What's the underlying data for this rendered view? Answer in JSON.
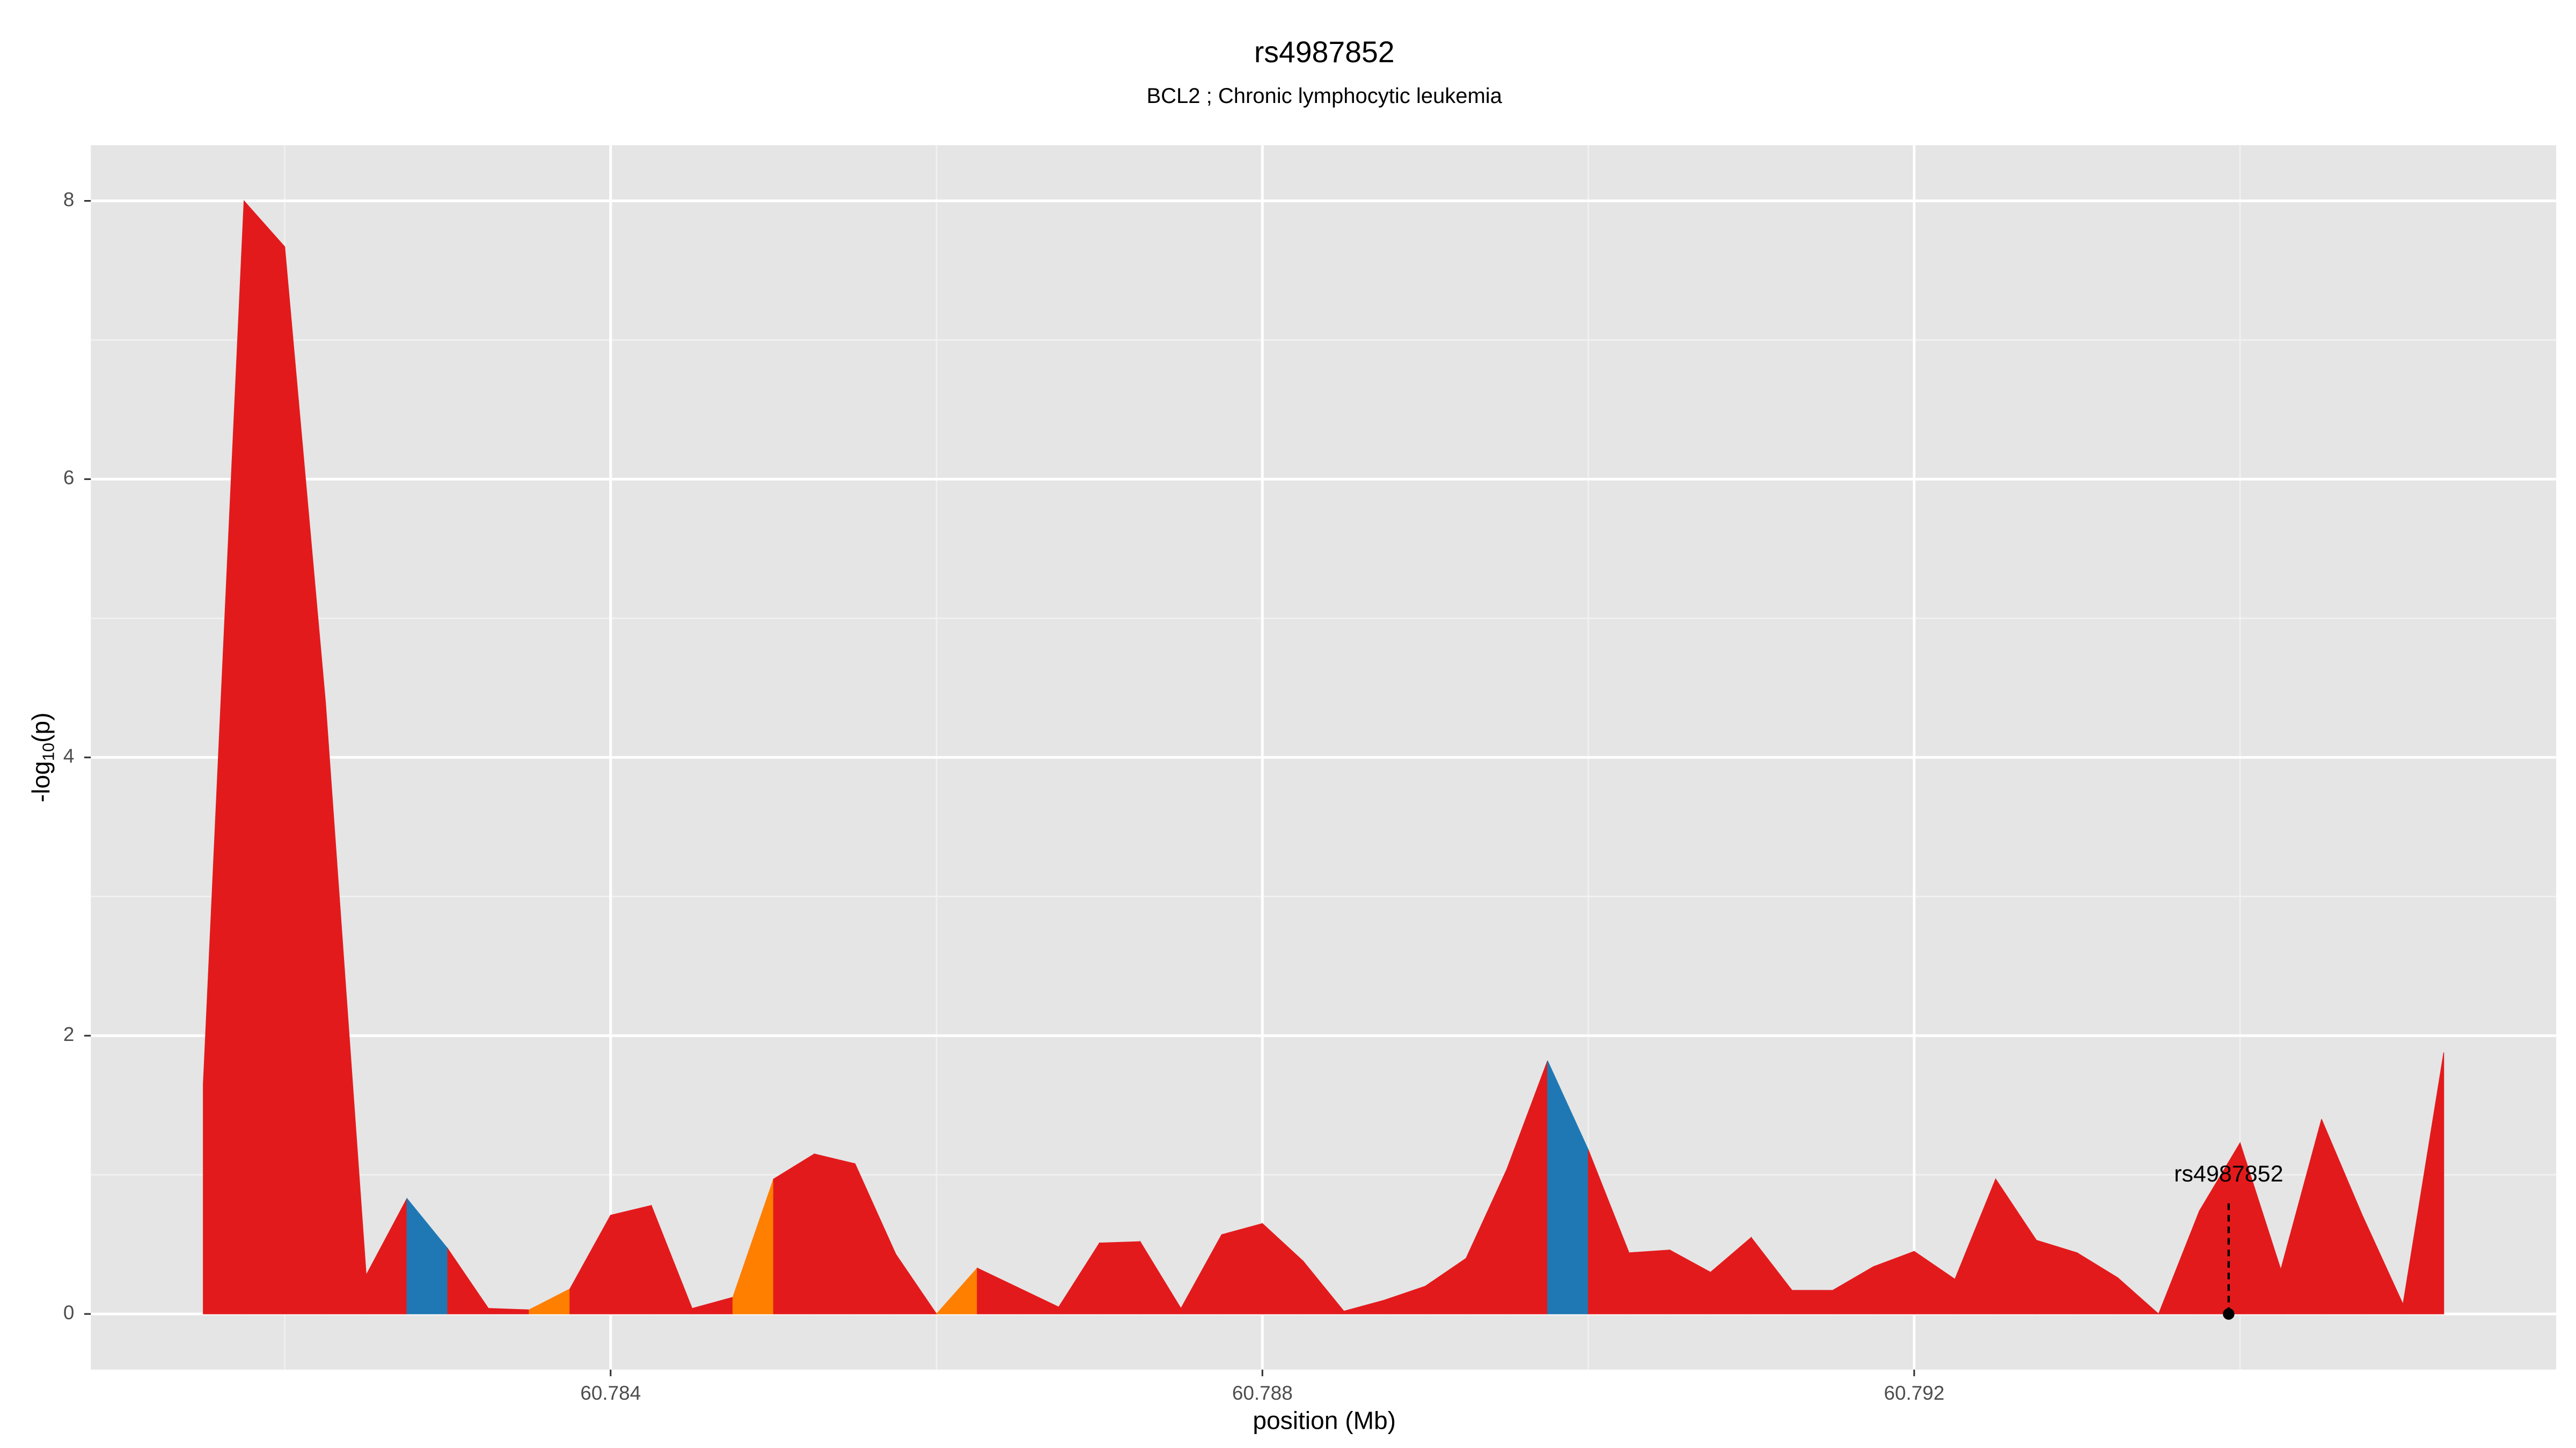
{
  "chart_data": {
    "type": "area",
    "title": "rs4987852",
    "subtitle": "BCL2 ; Chronic lymphocytic leukemia",
    "xlabel": "position (Mb)",
    "ylabel_parts": [
      "-log",
      "10",
      "(p)"
    ],
    "x": [
      60.7815,
      60.78175,
      60.782,
      60.78225,
      60.7825,
      60.78275,
      60.783,
      60.78325,
      60.7835,
      60.78375,
      60.784,
      60.78425,
      60.7845,
      60.78475,
      60.785,
      60.78525,
      60.7855,
      60.78575,
      60.786,
      60.78625,
      60.7865,
      60.78675,
      60.787,
      60.78725,
      60.7875,
      60.78775,
      60.788,
      60.78825,
      60.7885,
      60.78875,
      60.789,
      60.78925,
      60.7895,
      60.78975,
      60.79,
      60.79025,
      60.7905,
      60.79075,
      60.791,
      60.79125,
      60.7915,
      60.79175,
      60.792,
      60.79225,
      60.7925,
      60.79275,
      60.793,
      60.79325,
      60.7935,
      60.79375,
      60.794,
      60.79425,
      60.7945,
      60.79475,
      60.795,
      60.79525
    ],
    "values": [
      1.65,
      8.0,
      7.67,
      4.4,
      0.28,
      0.83,
      0.47,
      0.04,
      0.03,
      0.18,
      0.71,
      0.78,
      0.04,
      0.12,
      0.97,
      1.15,
      1.08,
      0.43,
      0.0,
      0.33,
      0.19,
      0.05,
      0.51,
      0.52,
      0.04,
      0.57,
      0.65,
      0.38,
      0.02,
      0.1,
      0.2,
      0.4,
      1.04,
      1.82,
      1.18,
      0.44,
      0.46,
      0.3,
      0.55,
      0.17,
      0.17,
      0.34,
      0.45,
      0.25,
      0.97,
      0.53,
      0.44,
      0.26,
      0.0,
      0.74,
      1.23,
      0.32,
      1.4,
      0.71,
      0.07,
      1.88
    ],
    "segment_colors": [
      "#e31a1c",
      "#e31a1c",
      "#e31a1c",
      "#e31a1c",
      "#e31a1c",
      "#1f78b4",
      "#e31a1c",
      "#e31a1c",
      "#ff7f00",
      "#e31a1c",
      "#e31a1c",
      "#e31a1c",
      "#e31a1c",
      "#ff7f00",
      "#e31a1c",
      "#e31a1c",
      "#e31a1c",
      "#e31a1c",
      "#ff7f00",
      "#e31a1c",
      "#e31a1c",
      "#e31a1c",
      "#e31a1c",
      "#e31a1c",
      "#e31a1c",
      "#e31a1c",
      "#e31a1c",
      "#e31a1c",
      "#e31a1c",
      "#e31a1c",
      "#e31a1c",
      "#e31a1c",
      "#e31a1c",
      "#1f78b4",
      "#e31a1c",
      "#e31a1c",
      "#e31a1c",
      "#e31a1c",
      "#e31a1c",
      "#e31a1c",
      "#e31a1c",
      "#e31a1c",
      "#e31a1c",
      "#e31a1c",
      "#e31a1c",
      "#e31a1c",
      "#e31a1c",
      "#e31a1c",
      "#e31a1c",
      "#e31a1c",
      "#e31a1c",
      "#e31a1c",
      "#e31a1c",
      "#e31a1c",
      "#e31a1c"
    ],
    "annotation": {
      "text": "rs4987852",
      "x": 60.79393,
      "y": 0
    },
    "xlim": [
      60.78081,
      60.79594
    ],
    "ylim": [
      -0.4,
      8.4
    ],
    "xticks": [
      60.784,
      60.788,
      60.792
    ],
    "yticks": [
      0,
      2,
      4,
      6,
      8
    ],
    "minor_xticks": [
      60.782,
      60.786,
      60.79,
      60.794
    ],
    "minor_yticks": [
      1,
      3,
      5,
      7
    ],
    "grid": true
  }
}
